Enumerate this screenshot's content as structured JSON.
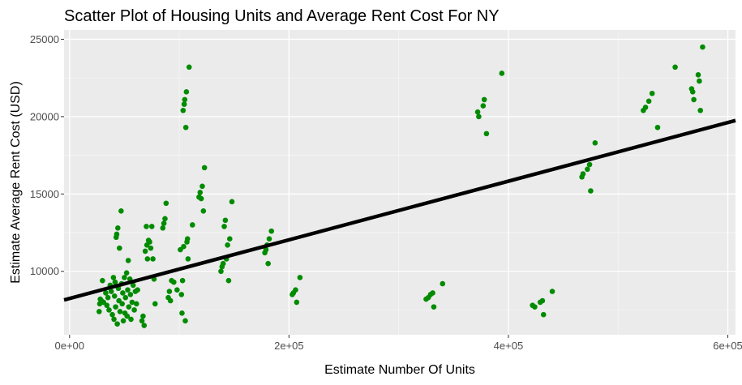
{
  "chart_data": {
    "type": "scatter",
    "title": "Scatter Plot of Housing Units and Average Rent Cost For NY",
    "xlabel": "Estimate Number Of Units",
    "ylabel": "Estimate Average Rent Cost (USD)",
    "xlim": [
      -5000,
      607000
    ],
    "ylim": [
      5900,
      25600
    ],
    "x_ticks": [
      0,
      200000,
      400000,
      600000
    ],
    "x_tick_labels": [
      "0e+00",
      "2e+05",
      "4e+05",
      "6e+05"
    ],
    "y_ticks": [
      10000,
      15000,
      20000,
      25000
    ],
    "y_tick_labels": [
      "10000",
      "15000",
      "20000",
      "25000"
    ],
    "grid": true,
    "legend": "none",
    "point_color": "#008b00",
    "line_color": "#000000",
    "panel_background": "#ebebeb",
    "trend_line": {
      "x": [
        -5000,
        607000
      ],
      "y": [
        8150,
        19750
      ]
    },
    "points": [
      {
        "x": 27000,
        "y": 7400
      },
      {
        "x": 27500,
        "y": 7900
      },
      {
        "x": 28000,
        "y": 8200
      },
      {
        "x": 29000,
        "y": 8100
      },
      {
        "x": 30000,
        "y": 9400
      },
      {
        "x": 31000,
        "y": 8000
      },
      {
        "x": 33000,
        "y": 8600
      },
      {
        "x": 34000,
        "y": 7800
      },
      {
        "x": 35000,
        "y": 8300
      },
      {
        "x": 36000,
        "y": 7500
      },
      {
        "x": 37000,
        "y": 9100
      },
      {
        "x": 38000,
        "y": 8700
      },
      {
        "x": 39000,
        "y": 7200
      },
      {
        "x": 40000,
        "y": 9600
      },
      {
        "x": 40500,
        "y": 6900
      },
      {
        "x": 41000,
        "y": 8400
      },
      {
        "x": 41500,
        "y": 9300
      },
      {
        "x": 42000,
        "y": 7700
      },
      {
        "x": 42500,
        "y": 12200
      },
      {
        "x": 43000,
        "y": 12400
      },
      {
        "x": 43500,
        "y": 6600
      },
      {
        "x": 44000,
        "y": 12800
      },
      {
        "x": 44500,
        "y": 8900
      },
      {
        "x": 45000,
        "y": 8100
      },
      {
        "x": 45500,
        "y": 11500
      },
      {
        "x": 46000,
        "y": 7400
      },
      {
        "x": 47000,
        "y": 13900
      },
      {
        "x": 47500,
        "y": 9200
      },
      {
        "x": 48000,
        "y": 7900
      },
      {
        "x": 48500,
        "y": 8600
      },
      {
        "x": 49000,
        "y": 6800
      },
      {
        "x": 50000,
        "y": 9600
      },
      {
        "x": 50500,
        "y": 7300
      },
      {
        "x": 51000,
        "y": 8300
      },
      {
        "x": 52000,
        "y": 9900
      },
      {
        "x": 52500,
        "y": 7100
      },
      {
        "x": 53000,
        "y": 8800
      },
      {
        "x": 53500,
        "y": 10700
      },
      {
        "x": 54000,
        "y": 7700
      },
      {
        "x": 55000,
        "y": 9500
      },
      {
        "x": 55500,
        "y": 8500
      },
      {
        "x": 56000,
        "y": 6900
      },
      {
        "x": 57000,
        "y": 8000
      },
      {
        "x": 58000,
        "y": 9100
      },
      {
        "x": 59000,
        "y": 7500
      },
      {
        "x": 60000,
        "y": 8700
      },
      {
        "x": 61000,
        "y": 7900
      },
      {
        "x": 62000,
        "y": 8800
      },
      {
        "x": 66000,
        "y": 6800
      },
      {
        "x": 67000,
        "y": 7100
      },
      {
        "x": 68000,
        "y": 6500
      },
      {
        "x": 69000,
        "y": 11300
      },
      {
        "x": 70000,
        "y": 12900
      },
      {
        "x": 70500,
        "y": 11700
      },
      {
        "x": 71000,
        "y": 10800
      },
      {
        "x": 72000,
        "y": 12000
      },
      {
        "x": 73000,
        "y": 11900
      },
      {
        "x": 74000,
        "y": 11500
      },
      {
        "x": 75000,
        "y": 12900
      },
      {
        "x": 76000,
        "y": 10800
      },
      {
        "x": 77000,
        "y": 9500
      },
      {
        "x": 78000,
        "y": 7900
      },
      {
        "x": 85000,
        "y": 12800
      },
      {
        "x": 86000,
        "y": 13100
      },
      {
        "x": 87000,
        "y": 13400
      },
      {
        "x": 88000,
        "y": 14400
      },
      {
        "x": 90000,
        "y": 8300
      },
      {
        "x": 91000,
        "y": 8700
      },
      {
        "x": 92000,
        "y": 8100
      },
      {
        "x": 93000,
        "y": 9400
      },
      {
        "x": 95000,
        "y": 9300
      },
      {
        "x": 98000,
        "y": 8800
      },
      {
        "x": 101000,
        "y": 11400
      },
      {
        "x": 102000,
        "y": 8500
      },
      {
        "x": 102500,
        "y": 7300
      },
      {
        "x": 103000,
        "y": 9400
      },
      {
        "x": 103500,
        "y": 20400
      },
      {
        "x": 104000,
        "y": 11600
      },
      {
        "x": 104500,
        "y": 20800
      },
      {
        "x": 105000,
        "y": 21100
      },
      {
        "x": 105500,
        "y": 6800
      },
      {
        "x": 106000,
        "y": 19300
      },
      {
        "x": 106500,
        "y": 21600
      },
      {
        "x": 107000,
        "y": 11900
      },
      {
        "x": 107500,
        "y": 12100
      },
      {
        "x": 108000,
        "y": 10800
      },
      {
        "x": 109000,
        "y": 23200
      },
      {
        "x": 112000,
        "y": 13000
      },
      {
        "x": 118000,
        "y": 14800
      },
      {
        "x": 119000,
        "y": 15100
      },
      {
        "x": 120000,
        "y": 14700
      },
      {
        "x": 121000,
        "y": 15500
      },
      {
        "x": 122000,
        "y": 13900
      },
      {
        "x": 123000,
        "y": 16700
      },
      {
        "x": 138000,
        "y": 10000
      },
      {
        "x": 139000,
        "y": 10300
      },
      {
        "x": 140000,
        "y": 10500
      },
      {
        "x": 141000,
        "y": 12900
      },
      {
        "x": 142000,
        "y": 13300
      },
      {
        "x": 143000,
        "y": 10800
      },
      {
        "x": 144000,
        "y": 11700
      },
      {
        "x": 145000,
        "y": 9400
      },
      {
        "x": 146000,
        "y": 12100
      },
      {
        "x": 148000,
        "y": 14500
      },
      {
        "x": 178000,
        "y": 11200
      },
      {
        "x": 179000,
        "y": 11400
      },
      {
        "x": 180000,
        "y": 11700
      },
      {
        "x": 181000,
        "y": 10500
      },
      {
        "x": 182000,
        "y": 12100
      },
      {
        "x": 184000,
        "y": 12600
      },
      {
        "x": 203000,
        "y": 8500
      },
      {
        "x": 204000,
        "y": 8600
      },
      {
        "x": 206000,
        "y": 8800
      },
      {
        "x": 207000,
        "y": 8000
      },
      {
        "x": 210000,
        "y": 9600
      },
      {
        "x": 325000,
        "y": 8200
      },
      {
        "x": 327000,
        "y": 8300
      },
      {
        "x": 329000,
        "y": 8500
      },
      {
        "x": 331000,
        "y": 8600
      },
      {
        "x": 332000,
        "y": 7700
      },
      {
        "x": 340000,
        "y": 9200
      },
      {
        "x": 372000,
        "y": 20300
      },
      {
        "x": 373000,
        "y": 20000
      },
      {
        "x": 377000,
        "y": 20700
      },
      {
        "x": 378000,
        "y": 21100
      },
      {
        "x": 380000,
        "y": 18900
      },
      {
        "x": 394000,
        "y": 22800
      },
      {
        "x": 422000,
        "y": 7800
      },
      {
        "x": 424000,
        "y": 7700
      },
      {
        "x": 429000,
        "y": 8000
      },
      {
        "x": 431000,
        "y": 8100
      },
      {
        "x": 432000,
        "y": 7200
      },
      {
        "x": 440000,
        "y": 8700
      },
      {
        "x": 467000,
        "y": 16100
      },
      {
        "x": 468000,
        "y": 16300
      },
      {
        "x": 472000,
        "y": 16600
      },
      {
        "x": 474000,
        "y": 16900
      },
      {
        "x": 475000,
        "y": 15200
      },
      {
        "x": 479000,
        "y": 18300
      },
      {
        "x": 523000,
        "y": 20400
      },
      {
        "x": 525000,
        "y": 20600
      },
      {
        "x": 528000,
        "y": 21000
      },
      {
        "x": 531000,
        "y": 21500
      },
      {
        "x": 536000,
        "y": 19300
      },
      {
        "x": 552000,
        "y": 23200
      },
      {
        "x": 567000,
        "y": 21800
      },
      {
        "x": 568000,
        "y": 21600
      },
      {
        "x": 569000,
        "y": 21100
      },
      {
        "x": 573000,
        "y": 22700
      },
      {
        "x": 574000,
        "y": 22300
      },
      {
        "x": 575000,
        "y": 20400
      },
      {
        "x": 577000,
        "y": 24500
      }
    ]
  }
}
